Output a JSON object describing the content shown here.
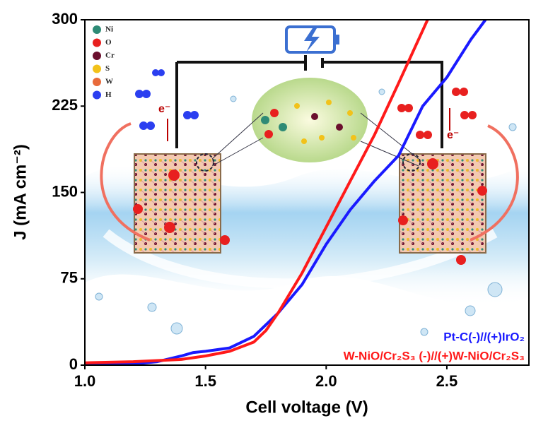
{
  "chart_data": {
    "type": "line",
    "xlabel": "Cell voltage (V)",
    "ylabel": "J (mA cm⁻²)",
    "xlim": [
      1.0,
      2.84
    ],
    "ylim": [
      0,
      300
    ],
    "xticks": [
      {
        "value": 1.0,
        "label": "1.0"
      },
      1.5,
      {
        "value": 2.0,
        "label": "2.0"
      },
      2.5
    ],
    "yticks": [
      0,
      75,
      150,
      225,
      300
    ],
    "legend": "lower right",
    "series": [
      {
        "name": "Pt-C(-)//(+)IrO₂",
        "color": "#1a1aff",
        "x": [
          1.0,
          1.2,
          1.3,
          1.4,
          1.45,
          1.5,
          1.6,
          1.7,
          1.8,
          1.9,
          2.0,
          2.1,
          2.2,
          2.3,
          2.4,
          2.5,
          2.6,
          2.66
        ],
        "values": [
          0,
          1,
          3,
          8,
          11,
          12,
          15,
          25,
          45,
          70,
          105,
          135,
          160,
          182,
          225,
          250,
          283,
          300
        ]
      },
      {
        "name": "W-NiO/Cr₂S₃ (-)//(+)W-NiO/Cr₂S₃",
        "color": "#ff1a1a",
        "x": [
          1.0,
          1.2,
          1.4,
          1.5,
          1.6,
          1.7,
          1.75,
          1.8,
          1.9,
          2.0,
          2.1,
          2.2,
          2.3,
          2.42
        ],
        "values": [
          2,
          3,
          5,
          8,
          12,
          20,
          30,
          45,
          80,
          120,
          160,
          200,
          245,
          300
        ]
      }
    ],
    "illustration": {
      "atoms": [
        {
          "label": "Ni",
          "color": "#2e8b76"
        },
        {
          "label": "O",
          "color": "#e8201f"
        },
        {
          "label": "Cr",
          "color": "#6b0f2e"
        },
        {
          "label": "S",
          "color": "#f2c21a"
        },
        {
          "label": "W",
          "color": "#e86a3a"
        },
        {
          "label": "H",
          "color": "#2b3ff0"
        }
      ],
      "electron_labels": [
        "e⁻",
        "e⁻"
      ]
    }
  }
}
